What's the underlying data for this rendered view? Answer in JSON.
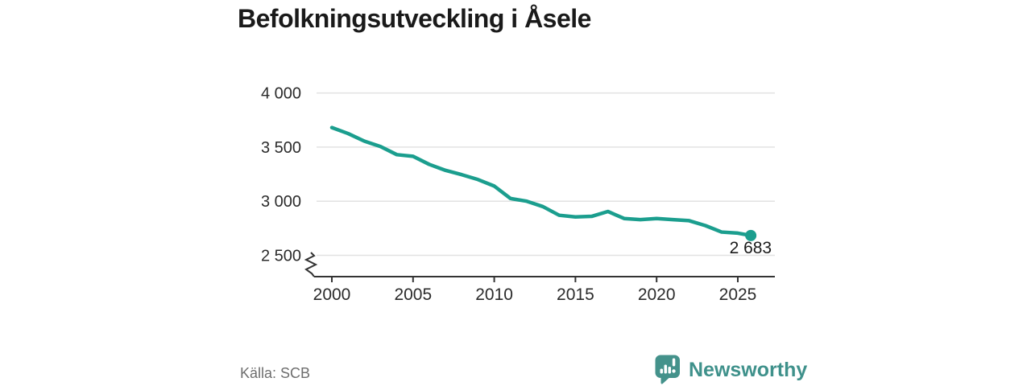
{
  "title": "Befolkningsutveckling i Åsele",
  "source": "Källa: SCB",
  "branding": {
    "name": "Newsworthy",
    "color": "#44928b",
    "icon": "speech-bubble-bar-chart"
  },
  "chart_data": {
    "type": "line",
    "title": "Befolkningsutveckling i Åsele",
    "xlabel": "",
    "ylabel": "",
    "x": [
      2000,
      2001,
      2002,
      2003,
      2004,
      2005,
      2006,
      2007,
      2008,
      2009,
      2010,
      2011,
      2012,
      2013,
      2014,
      2015,
      2016,
      2017,
      2018,
      2019,
      2020,
      2021,
      2022,
      2023,
      2024,
      2025,
      2025.8
    ],
    "values": [
      3680,
      3625,
      3555,
      3505,
      3430,
      3415,
      3340,
      3285,
      3245,
      3200,
      3140,
      3025,
      3000,
      2950,
      2870,
      2855,
      2860,
      2905,
      2840,
      2830,
      2840,
      2830,
      2820,
      2775,
      2715,
      2705,
      2683
    ],
    "end_label": "2 683",
    "x_ticks": [
      2000,
      2005,
      2010,
      2015,
      2020,
      2025
    ],
    "y_ticks": [
      {
        "value": 4000,
        "label": "4 000"
      },
      {
        "value": 3500,
        "label": "3 500"
      },
      {
        "value": 3000,
        "label": "3 000"
      },
      {
        "value": 2500,
        "label": "2 500"
      }
    ],
    "ylim": [
      2500,
      4000
    ],
    "xlim": [
      2000,
      2027
    ],
    "axis_break": true,
    "grid": true,
    "legend": "none",
    "line_color": "#1b9e8e",
    "grid_color": "#e2e2e2",
    "axis_color": "#333333",
    "tick_label_color": "#2b2b2b"
  }
}
